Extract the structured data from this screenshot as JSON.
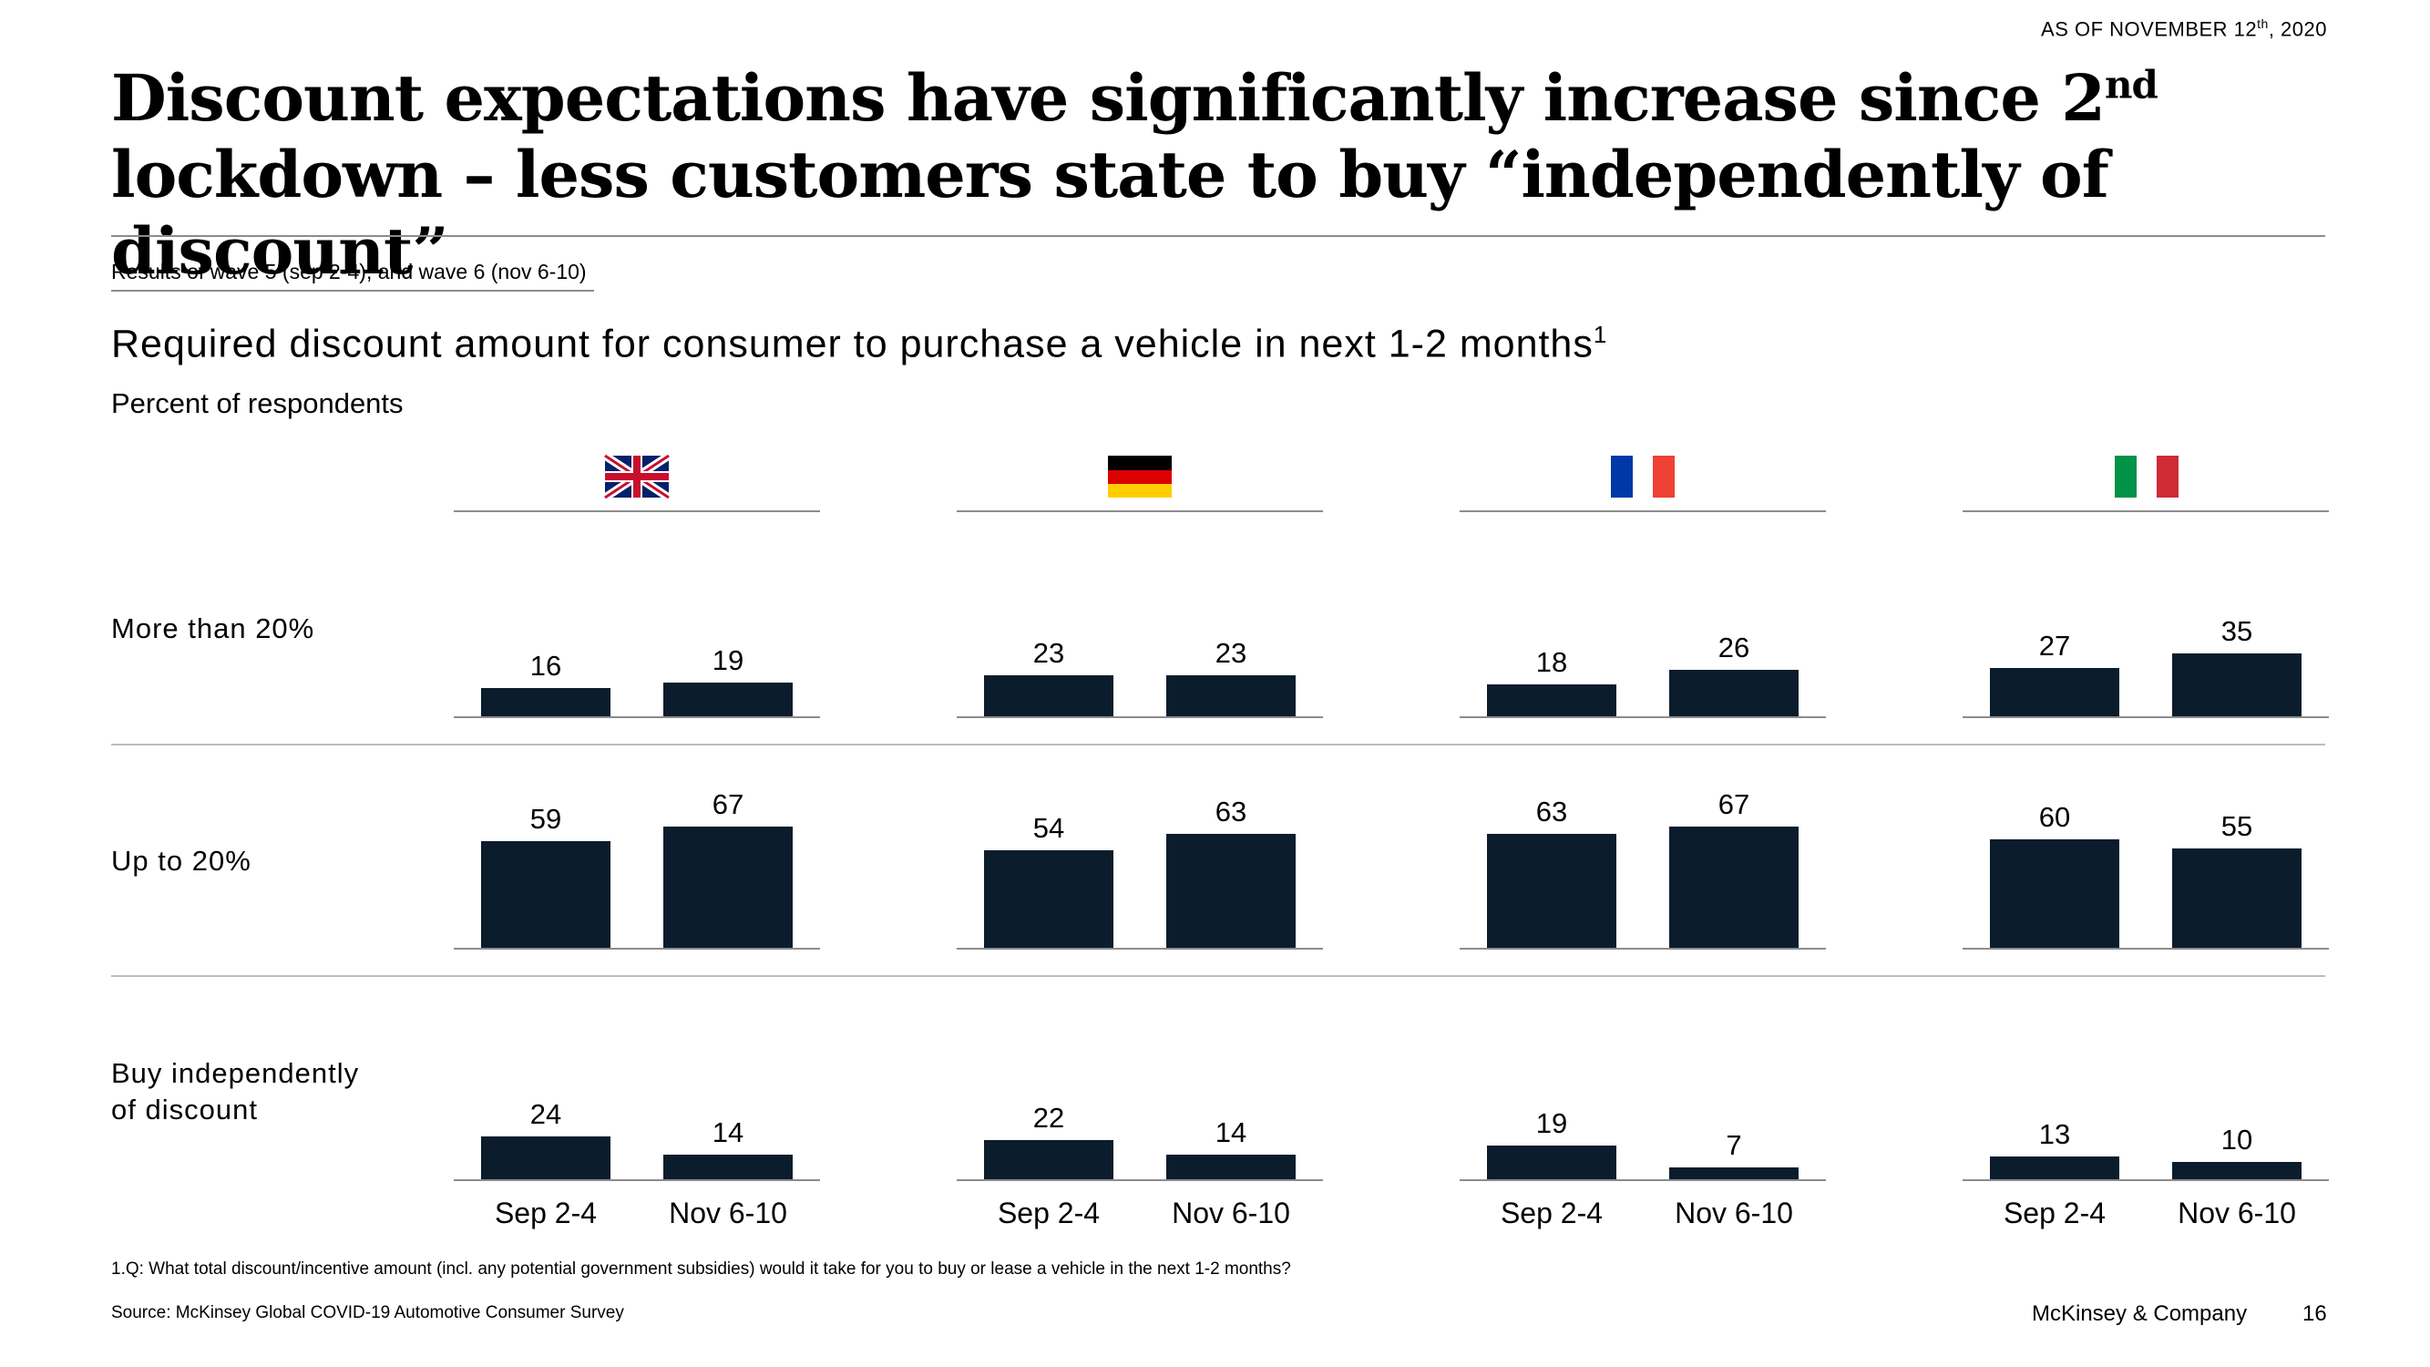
{
  "as_of": {
    "prefix": "AS OF NOVEMBER 12",
    "sup": "th",
    "suffix": ", 2020"
  },
  "title": {
    "line1_before_sup": "Discount expectations have significantly increase since 2",
    "sup": "nd",
    "line2": "lockdown – less customers state to buy “independently of discount”"
  },
  "waves_label": "Results of wave 5 (sep 2-4), and wave 6 (nov 6-10)",
  "subtitle": {
    "text": "Required discount amount for consumer to purchase a vehicle in next 1-2 months",
    "sup": "1"
  },
  "unit": "Percent of respondents",
  "rows": [
    {
      "label": "More than 20%"
    },
    {
      "label": "Up to 20%"
    },
    {
      "label_line1": "Buy independently",
      "label_line2": "of discount"
    }
  ],
  "chart_data": {
    "type": "bar",
    "title": "Required discount amount for consumer to purchase a vehicle in next 1-2 months",
    "ylabel": "Percent of respondents",
    "categories": [
      "Sep 2-4",
      "Nov 6-10"
    ],
    "row_labels": [
      "More than 20%",
      "Up to 20%",
      "Buy independently of discount"
    ],
    "color": "#0b1c2c",
    "ylim": [
      0,
      70
    ],
    "countries": [
      {
        "flag": "uk-flag-icon",
        "values": [
          [
            16,
            19
          ],
          [
            59,
            67
          ],
          [
            24,
            14
          ]
        ]
      },
      {
        "flag": "germany-flag-icon",
        "values": [
          [
            23,
            23
          ],
          [
            54,
            63
          ],
          [
            22,
            14
          ]
        ]
      },
      {
        "flag": "france-flag-icon",
        "values": [
          [
            18,
            26
          ],
          [
            63,
            67
          ],
          [
            19,
            7
          ]
        ]
      },
      {
        "flag": "italy-flag-icon",
        "values": [
          [
            27,
            35
          ],
          [
            60,
            55
          ],
          [
            13,
            10
          ]
        ]
      }
    ]
  },
  "footnote": "1.Q: What total discount/incentive amount (incl. any potential government subsidies) would it take for you to buy or lease a vehicle in the next 1-2 months?",
  "source": "Source: McKinsey Global COVID-19 Automotive Consumer Survey",
  "brand": "McKinsey & Company",
  "page_number": "16"
}
